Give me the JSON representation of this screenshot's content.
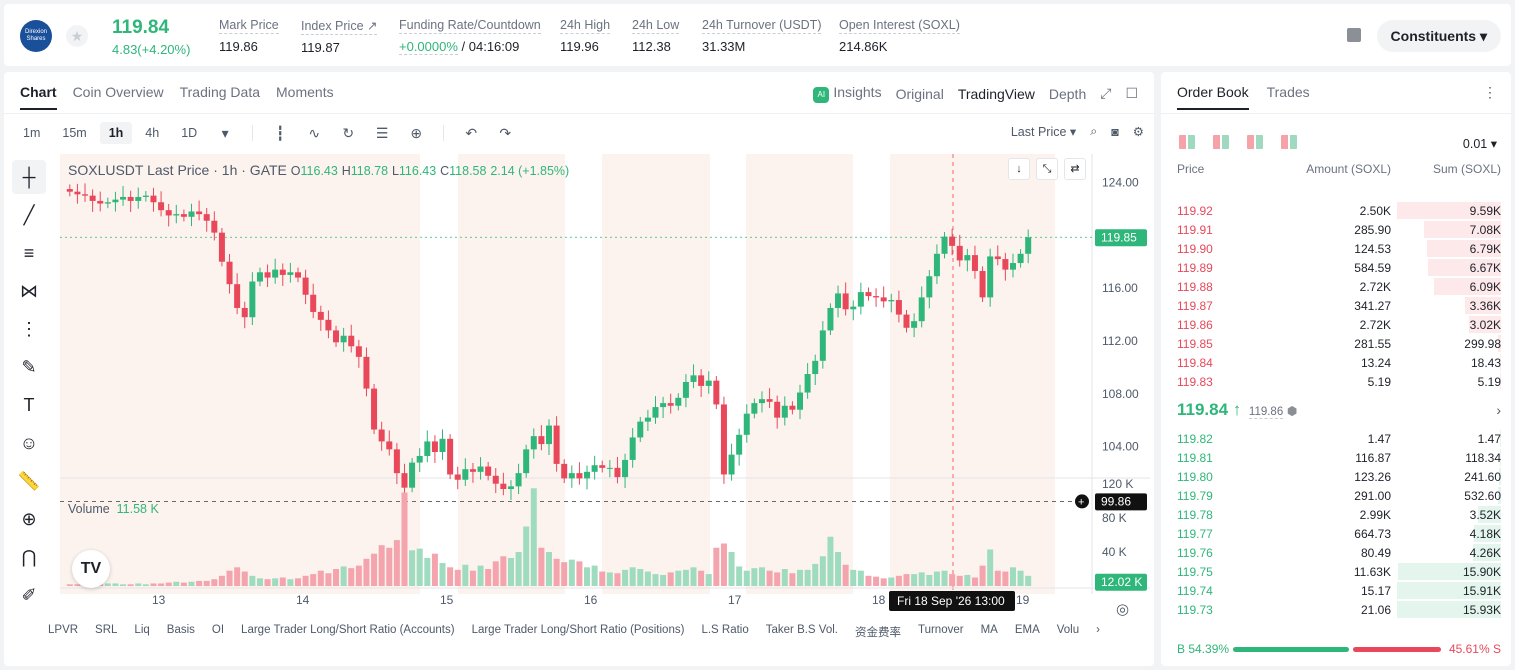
{
  "header": {
    "logo_text": "Direxion Shares",
    "price": "119.84",
    "change": "4.83(+4.20%)",
    "stats": [
      {
        "label": "Mark Price",
        "value": "119.86"
      },
      {
        "label": "Index Price ↗",
        "value": "119.87"
      },
      {
        "label": "Funding Rate/Countdown",
        "value_green": "+0.0000%",
        "value": " / 04:16:09"
      },
      {
        "label": "24h High",
        "value": "119.96"
      },
      {
        "label": "24h Low",
        "value": "112.38"
      },
      {
        "label": "24h Turnover (USDT)",
        "value": "31.33M"
      },
      {
        "label": "Open Interest (SOXL)",
        "value": "214.86K"
      }
    ],
    "constituents_label": "Constituents ▾"
  },
  "chart_panel": {
    "tabs": [
      "Chart",
      "Coin Overview",
      "Trading Data",
      "Moments"
    ],
    "right_tabs": {
      "insights": "Insights",
      "original": "Original",
      "tradingview": "TradingView",
      "depth": "Depth"
    },
    "timeframes": [
      "1m",
      "15m",
      "1h",
      "4h",
      "1D"
    ],
    "active_timeframe": "1h",
    "last_price_label": "Last Price",
    "legend": {
      "symbol": "SOXLUSDT Last Price · 1h · GATE",
      "o": "116.43",
      "h": "118.78",
      "l": "116.43",
      "c": "118.58",
      "chg": "2.14 (+1.85%)"
    },
    "volume_label": "Volume",
    "volume_value": "11.58 K",
    "price_tag": "119.85",
    "crosshair_price": "99.86",
    "volume_tag": "12.02 K",
    "crosshair_date": "Fri 18 Sep '26   13:00",
    "indicators": [
      "LPVR",
      "SRL",
      "Liq",
      "Basis",
      "OI",
      "Large Trader Long/Short Ratio (Accounts)",
      "Large Trader Long/Short Ratio (Positions)",
      "L.S Ratio",
      "Taker B.S Vol.",
      "资金费率",
      "Turnover",
      "MA",
      "EMA",
      "Volu"
    ]
  },
  "chart_data": {
    "type": "candlestick",
    "title": "SOXLUSDT Last Price · 1h · GATE",
    "price_axis_ticks": [
      "124.00",
      "120.00",
      "116.00",
      "112.00",
      "108.00",
      "104.00"
    ],
    "volume_axis_ticks": [
      "120 K",
      "80 K",
      "40 K"
    ],
    "x_ticks": [
      "13",
      "14",
      "15",
      "16",
      "17",
      "18",
      "19"
    ],
    "ylim": [
      98,
      126
    ],
    "closes": [
      123.3,
      123.1,
      123.0,
      122.6,
      122.4,
      122.5,
      122.7,
      122.9,
      122.6,
      122.9,
      123.0,
      122.5,
      121.9,
      121.5,
      121.6,
      121.4,
      121.8,
      121.6,
      121.1,
      120.2,
      118.0,
      116.3,
      114.5,
      113.8,
      116.5,
      117.2,
      116.8,
      117.4,
      117.0,
      117.2,
      116.8,
      115.5,
      114.2,
      113.6,
      112.8,
      111.9,
      112.4,
      111.6,
      110.8,
      108.4,
      105.3,
      104.4,
      103.8,
      102.0,
      100.9,
      102.8,
      103.3,
      104.4,
      103.6,
      104.6,
      101.9,
      101.5,
      102.3,
      102.1,
      102.5,
      101.8,
      101.2,
      100.8,
      101.0,
      102.0,
      103.8,
      104.8,
      104.2,
      105.6,
      102.7,
      101.6,
      102.0,
      101.6,
      102.1,
      102.6,
      102.4,
      102.4,
      101.7,
      103.0,
      104.7,
      105.9,
      106.2,
      107.0,
      107.3,
      107.1,
      107.7,
      108.9,
      109.4,
      108.6,
      109.0,
      107.2,
      101.9,
      103.4,
      104.9,
      106.5,
      107.3,
      107.6,
      107.4,
      106.2,
      107.1,
      106.8,
      108.1,
      109.5,
      110.5,
      112.8,
      114.5,
      115.6,
      114.4,
      114.6,
      115.7,
      115.4,
      115.3,
      115.0,
      115.1,
      114.0,
      113.0,
      113.5,
      115.3,
      116.9,
      118.6,
      119.9,
      119.2,
      118.1,
      118.5,
      117.3,
      115.3,
      118.4,
      118.2,
      117.4,
      117.9,
      118.6,
      119.85
    ],
    "volumes": [
      2,
      2,
      3,
      2,
      2,
      3,
      3,
      2,
      2,
      3,
      2,
      3,
      3,
      4,
      5,
      4,
      5,
      6,
      6,
      8,
      12,
      18,
      22,
      17,
      12,
      9,
      8,
      9,
      10,
      8,
      9,
      12,
      14,
      18,
      15,
      20,
      23,
      21,
      24,
      32,
      38,
      48,
      45,
      54,
      110,
      42,
      44,
      33,
      38,
      27,
      22,
      19,
      25,
      18,
      24,
      20,
      29,
      35,
      33,
      40,
      70,
      115,
      45,
      40,
      32,
      28,
      31,
      29,
      22,
      24,
      17,
      16,
      15,
      19,
      22,
      20,
      17,
      14,
      13,
      16,
      18,
      19,
      22,
      18,
      14,
      45,
      50,
      40,
      23,
      18,
      21,
      22,
      18,
      16,
      20,
      15,
      19,
      19,
      26,
      35,
      58,
      40,
      25,
      19,
      18,
      12,
      11,
      9,
      10,
      12,
      14,
      14,
      16,
      13,
      17,
      18,
      14,
      12,
      13,
      10,
      24,
      43,
      18,
      17,
      22,
      18,
      12,
      16,
      22
    ]
  },
  "orderbook": {
    "tabs": [
      "Order Book",
      "Trades"
    ],
    "precision": "0.01 ▾",
    "headers": {
      "price": "Price",
      "amount": "Amount (SOXL)",
      "sum": "Sum (SOXL)"
    },
    "asks": [
      {
        "p": "119.92",
        "a": "2.50K",
        "s": "9.59K",
        "w": 1.0
      },
      {
        "p": "119.91",
        "a": "285.90",
        "s": "7.08K",
        "w": 0.74
      },
      {
        "p": "119.90",
        "a": "124.53",
        "s": "6.79K",
        "w": 0.71
      },
      {
        "p": "119.89",
        "a": "584.59",
        "s": "6.67K",
        "w": 0.7
      },
      {
        "p": "119.88",
        "a": "2.72K",
        "s": "6.09K",
        "w": 0.64
      },
      {
        "p": "119.87",
        "a": "341.27",
        "s": "3.36K",
        "w": 0.35
      },
      {
        "p": "119.86",
        "a": "2.72K",
        "s": "3.02K",
        "w": 0.31
      },
      {
        "p": "119.85",
        "a": "281.55",
        "s": "299.98",
        "w": 0.03
      },
      {
        "p": "119.84",
        "a": "13.24",
        "s": "18.43",
        "w": 0.01
      },
      {
        "p": "119.83",
        "a": "5.19",
        "s": "5.19",
        "w": 0.005
      }
    ],
    "mid_price": "119.84 ↑",
    "mark_price": "119.86",
    "bids": [
      {
        "p": "119.82",
        "a": "1.47",
        "s": "1.47",
        "w": 0.005
      },
      {
        "p": "119.81",
        "a": "116.87",
        "s": "118.34",
        "w": 0.01
      },
      {
        "p": "119.80",
        "a": "123.26",
        "s": "241.60",
        "w": 0.015
      },
      {
        "p": "119.79",
        "a": "291.00",
        "s": "532.60",
        "w": 0.03
      },
      {
        "p": "119.78",
        "a": "2.99K",
        "s": "3.52K",
        "w": 0.22
      },
      {
        "p": "119.77",
        "a": "664.73",
        "s": "4.18K",
        "w": 0.26
      },
      {
        "p": "119.76",
        "a": "80.49",
        "s": "4.26K",
        "w": 0.27
      },
      {
        "p": "119.75",
        "a": "11.63K",
        "s": "15.90K",
        "w": 0.995
      },
      {
        "p": "119.74",
        "a": "15.17",
        "s": "15.91K",
        "w": 0.998
      },
      {
        "p": "119.73",
        "a": "21.06",
        "s": "15.93K",
        "w": 1.0
      }
    ],
    "buy_ratio": "B 54.39%",
    "sell_ratio": "45.61% S"
  }
}
